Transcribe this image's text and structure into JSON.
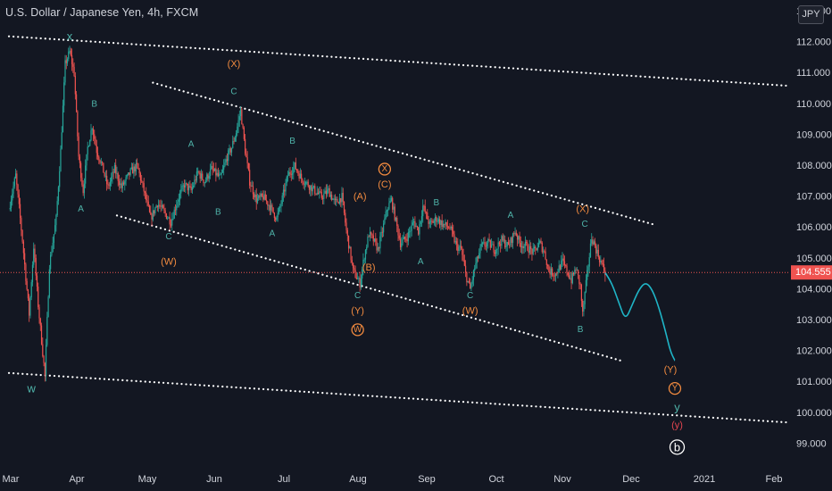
{
  "header": {
    "symbol_title": "U.S. Dollar / Japanese Yen, 4h, FXCM",
    "currency": "JPY"
  },
  "colors": {
    "background": "#131722",
    "axis_text": "#d1d4dc",
    "candle_up": "#26a69a",
    "candle_down": "#ef5350",
    "trendline": "#ffffff",
    "projection": "#1fb5c7",
    "label_teal": "#4fb3a9",
    "label_orange": "#f38b3f",
    "label_red": "#e2454f",
    "label_white": "#ffffff",
    "price_badge": "#ef5350"
  },
  "chart_data": {
    "type": "candlestick",
    "symbol": "U.S. Dollar / Japanese Yen, 4h, FXCM",
    "x_axis_labels": [
      "Mar",
      "Apr",
      "May",
      "Jun",
      "Jul",
      "Aug",
      "Sep",
      "Oct",
      "Nov",
      "Dec",
      "2021",
      "Feb"
    ],
    "y_axis_labels": [
      "112.000",
      "111.000",
      "110.000",
      "109.000",
      "108.000",
      "107.000",
      "106.000",
      "105.000",
      "104.000",
      "103.000",
      "102.000",
      "101.000",
      "100.000",
      "99.000"
    ],
    "top_label_partial": "113.000",
    "ylim": [
      98.6,
      113.2
    ],
    "xlim_days": [
      0,
      346
    ],
    "last_price": 104.555,
    "last_price_label": "104.555",
    "price_path": [
      [
        0,
        106.6
      ],
      [
        3,
        107.7
      ],
      [
        6,
        105.6
      ],
      [
        9,
        103.2
      ],
      [
        11,
        105.4
      ],
      [
        13,
        103.5
      ],
      [
        16,
        101.2
      ],
      [
        18,
        104.8
      ],
      [
        21,
        106.3
      ],
      [
        23,
        108.5
      ],
      [
        25,
        111.3
      ],
      [
        27,
        111.7
      ],
      [
        29,
        111.0
      ],
      [
        31,
        108.3
      ],
      [
        33,
        107.2
      ],
      [
        35,
        108.6
      ],
      [
        37,
        109.3
      ],
      [
        39,
        108.5
      ],
      [
        41,
        108.1
      ],
      [
        44,
        107.3
      ],
      [
        47,
        107.9
      ],
      [
        50,
        107.3
      ],
      [
        54,
        107.8
      ],
      [
        57,
        108.0
      ],
      [
        60,
        107.2
      ],
      [
        63,
        106.3
      ],
      [
        66,
        106.8
      ],
      [
        69,
        106.5
      ],
      [
        72,
        106.2
      ],
      [
        75,
        106.9
      ],
      [
        78,
        107.4
      ],
      [
        81,
        107.2
      ],
      [
        84,
        107.8
      ],
      [
        87,
        107.5
      ],
      [
        90,
        107.9
      ],
      [
        94,
        107.6
      ],
      [
        97,
        108.3
      ],
      [
        99,
        108.6
      ],
      [
        101,
        109.1
      ],
      [
        103,
        109.8
      ],
      [
        105,
        108.5
      ],
      [
        107,
        107.5
      ],
      [
        110,
        106.9
      ],
      [
        113,
        107.0
      ],
      [
        116,
        106.7
      ],
      [
        119,
        106.3
      ],
      [
        121,
        106.8
      ],
      [
        124,
        107.7
      ],
      [
        127,
        108.0
      ],
      [
        130,
        107.6
      ],
      [
        133,
        107.4
      ],
      [
        136,
        107.2
      ],
      [
        139,
        107.0
      ],
      [
        142,
        107.2
      ],
      [
        145,
        106.8
      ],
      [
        148,
        107.0
      ],
      [
        150,
        105.9
      ],
      [
        153,
        104.6
      ],
      [
        156,
        104.2
      ],
      [
        158,
        105.1
      ],
      [
        160,
        105.8
      ],
      [
        162,
        105.6
      ],
      [
        164,
        105.3
      ],
      [
        166,
        105.9
      ],
      [
        168,
        106.6
      ],
      [
        170,
        106.9
      ],
      [
        172,
        106.2
      ],
      [
        174,
        105.5
      ],
      [
        177,
        105.7
      ],
      [
        180,
        106.2
      ],
      [
        182,
        105.9
      ],
      [
        184,
        106.7
      ],
      [
        187,
        106.1
      ],
      [
        190,
        106.3
      ],
      [
        193,
        106.1
      ],
      [
        196,
        106.0
      ],
      [
        199,
        105.4
      ],
      [
        201,
        105.3
      ],
      [
        203,
        104.5
      ],
      [
        205,
        104.0
      ],
      [
        207,
        104.7
      ],
      [
        210,
        105.4
      ],
      [
        213,
        105.5
      ],
      [
        216,
        105.3
      ],
      [
        219,
        105.6
      ],
      [
        222,
        105.4
      ],
      [
        225,
        105.9
      ],
      [
        227,
        105.5
      ],
      [
        230,
        105.4
      ],
      [
        233,
        105.2
      ],
      [
        236,
        105.5
      ],
      [
        238,
        105.2
      ],
      [
        240,
        104.6
      ],
      [
        243,
        104.5
      ],
      [
        246,
        104.9
      ],
      [
        248,
        104.6
      ],
      [
        250,
        104.3
      ],
      [
        252,
        104.7
      ],
      [
        254,
        104.1
      ],
      [
        255,
        103.2
      ],
      [
        257,
        104.5
      ],
      [
        259,
        105.7
      ],
      [
        261,
        105.3
      ],
      [
        263,
        104.9
      ],
      [
        265,
        104.555
      ]
    ],
    "projection_path": [
      [
        265,
        104.555
      ],
      [
        268,
        104.2
      ],
      [
        271,
        103.6
      ],
      [
        274,
        103.0
      ],
      [
        277,
        103.5
      ],
      [
        280,
        104.0
      ],
      [
        283,
        104.25
      ],
      [
        286,
        104.0
      ],
      [
        289,
        103.4
      ],
      [
        292,
        102.6
      ],
      [
        294,
        102.0
      ],
      [
        296,
        101.7
      ]
    ],
    "trendlines": [
      {
        "from": [
          0,
          112.2
        ],
        "to": [
          346,
          110.6
        ]
      },
      {
        "from": [
          0,
          101.3
        ],
        "to": [
          346,
          99.7
        ]
      },
      {
        "from": [
          64,
          110.7
        ],
        "to": [
          287,
          106.1
        ]
      },
      {
        "from": [
          48,
          106.4
        ],
        "to": [
          272,
          101.7
        ]
      }
    ],
    "annotations": [
      {
        "text": "x",
        "x": 27,
        "y": 112.2,
        "color": "label_teal"
      },
      {
        "text": "w",
        "x": 10,
        "y": 100.8,
        "color": "label_teal"
      },
      {
        "text": "A",
        "x": 32,
        "y": 106.6,
        "color": "label_teal"
      },
      {
        "text": "B",
        "x": 38,
        "y": 110.0,
        "color": "label_teal"
      },
      {
        "text": "A",
        "x": 81,
        "y": 108.7,
        "color": "label_teal"
      },
      {
        "text": "B",
        "x": 93,
        "y": 106.5,
        "color": "label_teal"
      },
      {
        "text": "C",
        "x": 71,
        "y": 105.7,
        "color": "label_teal"
      },
      {
        "text": "(W)",
        "x": 71,
        "y": 104.9,
        "color": "label_orange"
      },
      {
        "text": "(X)",
        "x": 100,
        "y": 111.3,
        "color": "label_orange"
      },
      {
        "text": "C",
        "x": 100,
        "y": 110.4,
        "color": "label_teal"
      },
      {
        "text": "A",
        "x": 117,
        "y": 105.8,
        "color": "label_teal"
      },
      {
        "text": "B",
        "x": 126,
        "y": 108.8,
        "color": "label_teal"
      },
      {
        "text": "X",
        "x": 167,
        "y": 107.9,
        "color": "label_orange",
        "circled": true
      },
      {
        "text": "(C)",
        "x": 167,
        "y": 107.4,
        "color": "label_orange"
      },
      {
        "text": "(A)",
        "x": 156,
        "y": 107.0,
        "color": "label_orange"
      },
      {
        "text": "(B)",
        "x": 160,
        "y": 104.7,
        "color": "label_orange"
      },
      {
        "text": "C",
        "x": 155,
        "y": 103.8,
        "color": "label_teal"
      },
      {
        "text": "(Y)",
        "x": 155,
        "y": 103.3,
        "color": "label_orange"
      },
      {
        "text": "W",
        "x": 155,
        "y": 102.7,
        "color": "label_orange",
        "circled": true
      },
      {
        "text": "B",
        "x": 190,
        "y": 106.8,
        "color": "label_teal"
      },
      {
        "text": "A",
        "x": 183,
        "y": 104.9,
        "color": "label_teal"
      },
      {
        "text": "C",
        "x": 205,
        "y": 103.8,
        "color": "label_teal"
      },
      {
        "text": "(W)",
        "x": 205,
        "y": 103.3,
        "color": "label_orange"
      },
      {
        "text": "A",
        "x": 223,
        "y": 106.4,
        "color": "label_teal"
      },
      {
        "text": "(X)",
        "x": 255,
        "y": 106.6,
        "color": "label_orange"
      },
      {
        "text": "C",
        "x": 256,
        "y": 106.1,
        "color": "label_teal"
      },
      {
        "text": "B",
        "x": 254,
        "y": 102.7,
        "color": "label_teal"
      },
      {
        "text": "(Y)",
        "x": 294,
        "y": 101.4,
        "color": "label_orange"
      },
      {
        "text": "Y",
        "x": 296,
        "y": 100.8,
        "color": "label_orange",
        "circled": true
      },
      {
        "text": "y",
        "x": 297,
        "y": 100.2,
        "color": "label_teal"
      },
      {
        "text": "(y)",
        "x": 297,
        "y": 99.6,
        "color": "label_red"
      },
      {
        "text": "b",
        "x": 297,
        "y": 98.9,
        "color": "label_white",
        "circled": true
      }
    ]
  }
}
